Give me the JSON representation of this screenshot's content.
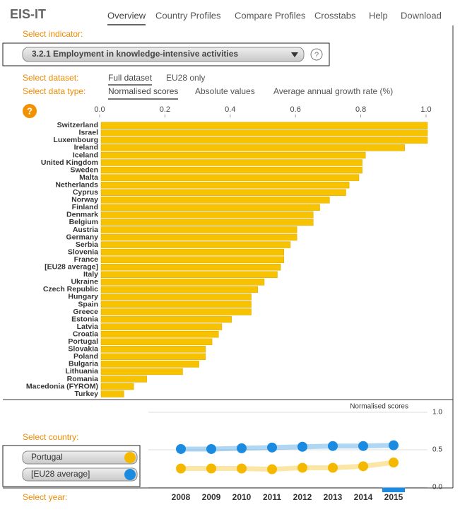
{
  "header": {
    "logo": "EIS-IT",
    "nav": [
      "Overview",
      "Country Profiles",
      "Compare Profiles",
      "Crosstabs",
      "Help",
      "Download"
    ]
  },
  "indicator": {
    "label": "Select indicator:",
    "value": "3.2.1 Employment in knowledge-intensive activities",
    "help": "?"
  },
  "dataset": {
    "label": "Select dataset:",
    "options": [
      "Full dataset",
      "EU28 only"
    ]
  },
  "data_type": {
    "label": "Select data type:",
    "options": [
      "Normalised scores",
      "Absolute values",
      "Average annual growth rate (%)"
    ]
  },
  "chart_help": "?",
  "country_selector": {
    "label": "Select country:"
  },
  "year_selector": {
    "label": "Select year:"
  },
  "chart_data": [
    {
      "type": "bar",
      "orientation": "horizontal",
      "color": "#f7c200",
      "categories": [
        "Switzerland",
        "Israel",
        "Luxembourg",
        "Ireland",
        "Iceland",
        "United Kingdom",
        "Sweden",
        "Malta",
        "Netherlands",
        "Cyprus",
        "Norway",
        "Finland",
        "Denmark",
        "Belgium",
        "Austria",
        "Germany",
        "Serbia",
        "Slovenia",
        "France",
        "[EU28 average]",
        "Italy",
        "Ukraine",
        "Czech Republic",
        "Hungary",
        "Spain",
        "Greece",
        "Estonia",
        "Latvia",
        "Croatia",
        "Portugal",
        "Slovakia",
        "Poland",
        "Bulgaria",
        "Lithuania",
        "Romania",
        "Macedonia (FYROM)",
        "Turkey"
      ],
      "values": [
        1.0,
        1.0,
        1.0,
        0.93,
        0.81,
        0.8,
        0.8,
        0.79,
        0.76,
        0.75,
        0.7,
        0.67,
        0.65,
        0.65,
        0.6,
        0.6,
        0.58,
        0.56,
        0.56,
        0.55,
        0.54,
        0.5,
        0.48,
        0.46,
        0.46,
        0.46,
        0.4,
        0.37,
        0.36,
        0.34,
        0.32,
        0.32,
        0.3,
        0.25,
        0.14,
        0.1,
        0.07
      ],
      "xlim": [
        0,
        1
      ],
      "xticks": [
        {
          "value": 0,
          "label": "0.0"
        },
        0.2,
        0.4,
        0.6,
        0.8,
        {
          "value": 1,
          "label": "1.0"
        }
      ]
    },
    {
      "type": "line",
      "title": "Normalised scores",
      "categories": [
        "2008",
        "2009",
        "2010",
        "2011",
        "2012",
        "2013",
        "2014",
        "2015"
      ],
      "series": [
        {
          "name": "Portugal",
          "color": "#f5b800",
          "values": [
            0.25,
            0.25,
            0.25,
            0.24,
            0.26,
            0.26,
            0.28,
            0.33
          ]
        },
        {
          "name": "[EU28 average]",
          "color": "#1a8be0",
          "values": [
            0.51,
            0.51,
            0.52,
            0.53,
            0.54,
            0.55,
            0.55,
            0.56
          ]
        }
      ],
      "ylim": [
        0,
        1
      ],
      "yticks": [
        {
          "value": 0,
          "label": "0.0"
        },
        0.5,
        {
          "value": 1,
          "label": "1.0"
        }
      ]
    }
  ]
}
